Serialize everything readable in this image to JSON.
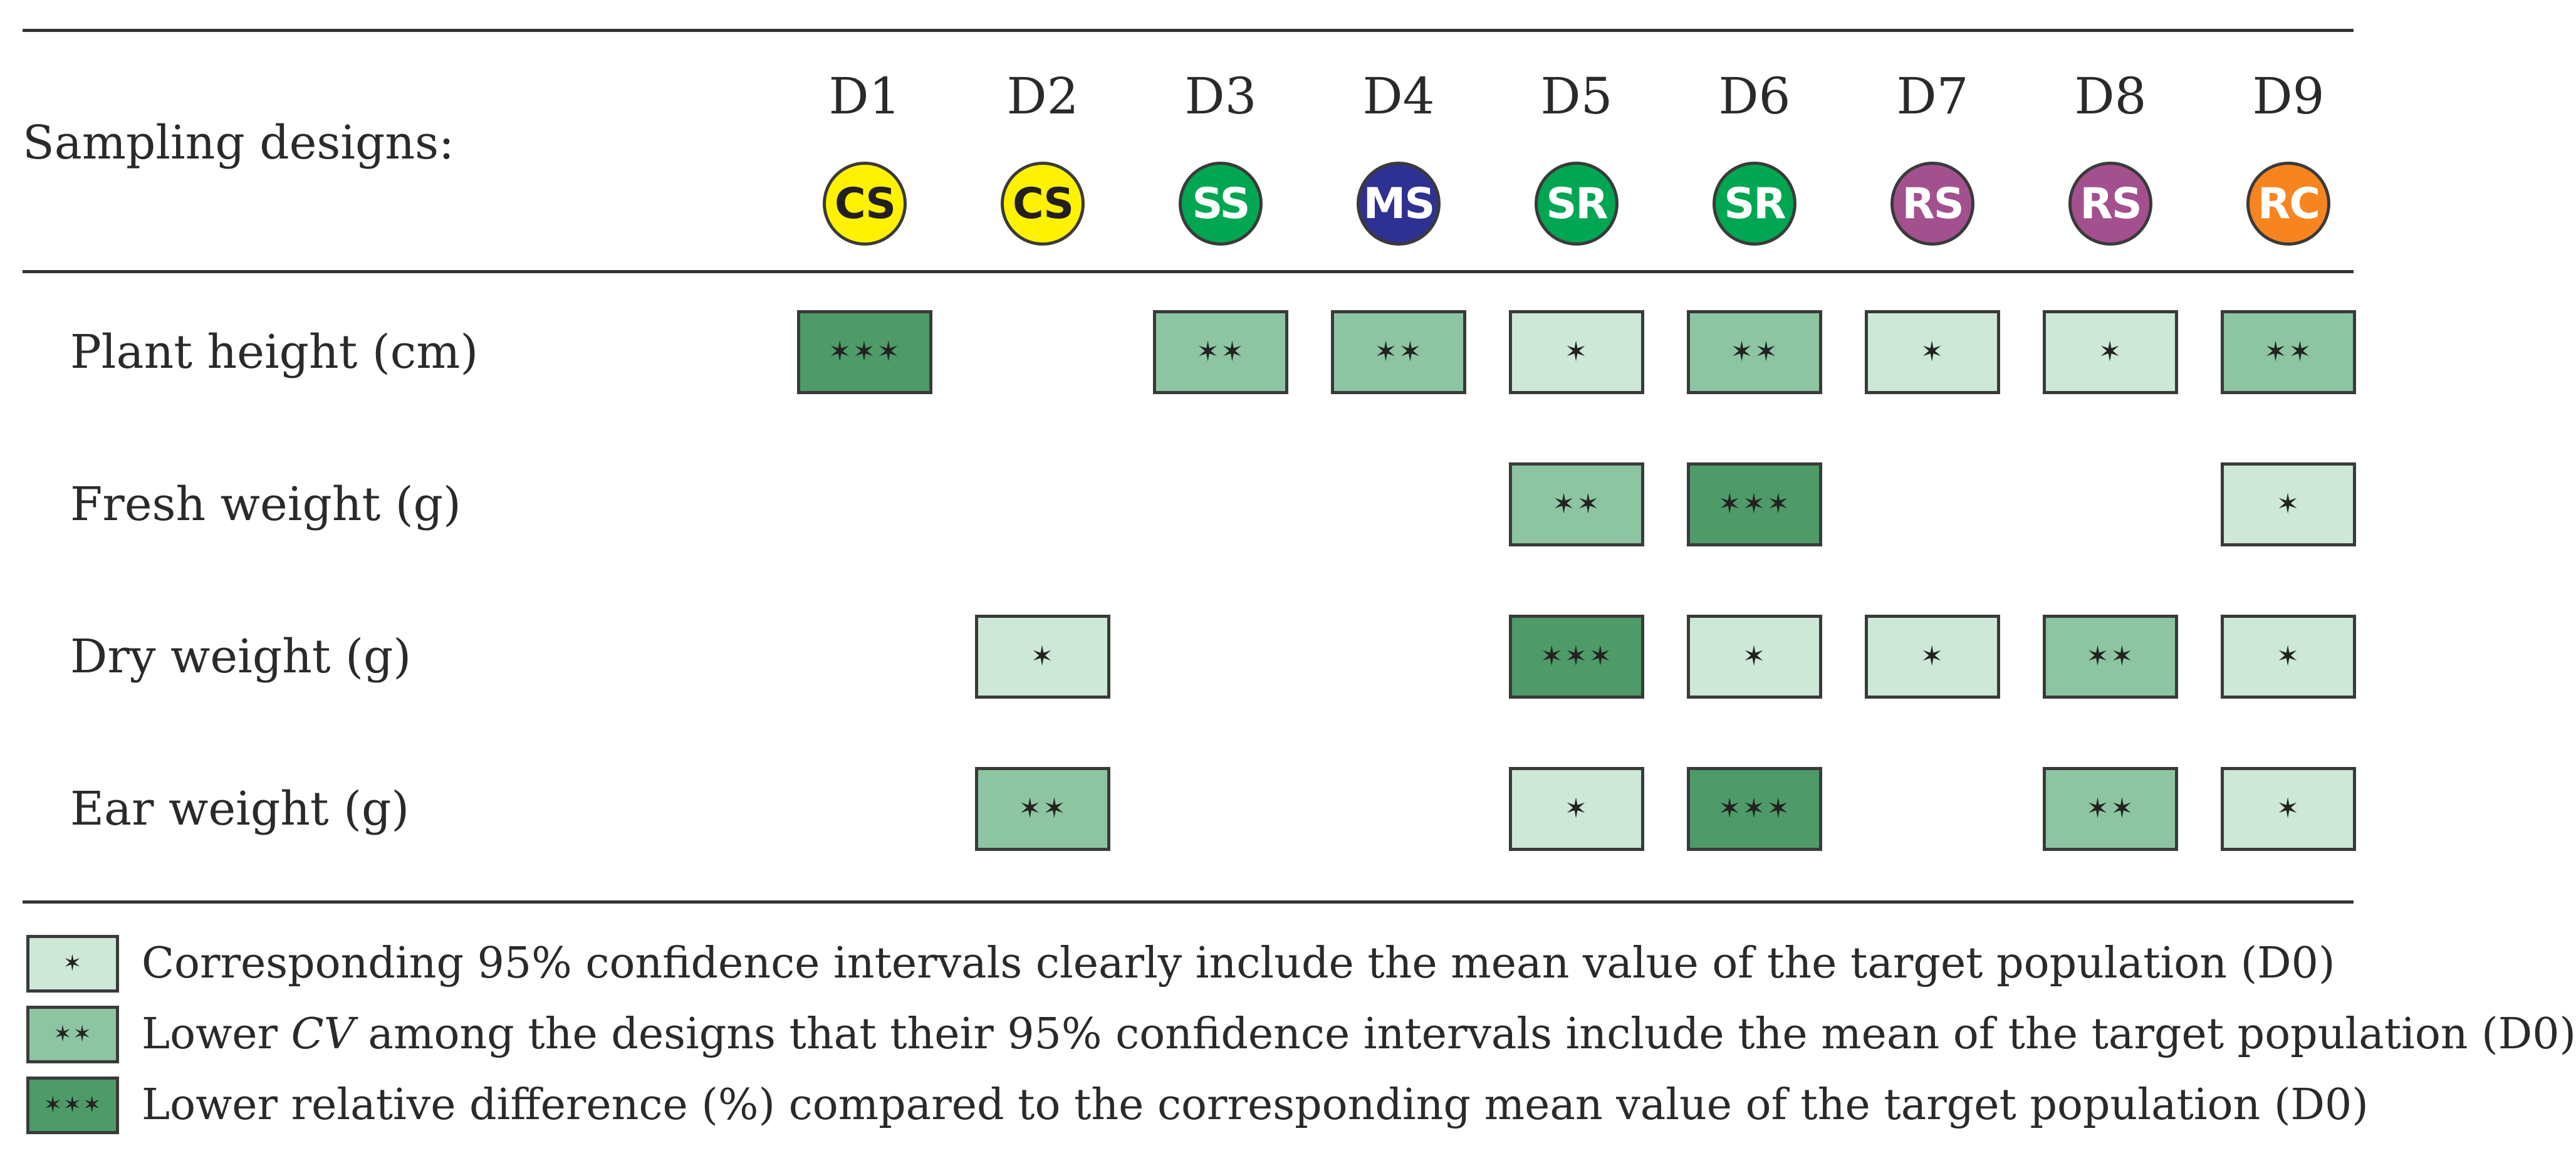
{
  "header": {
    "sampling_label": "Sampling designs:",
    "designs": [
      {
        "id": "D1",
        "code": "CS",
        "bg": "#FFF200",
        "fg": "#231F20"
      },
      {
        "id": "D2",
        "code": "CS",
        "bg": "#FFF200",
        "fg": "#231F20"
      },
      {
        "id": "D3",
        "code": "SS",
        "bg": "#00A651",
        "fg": "#FFFFFF"
      },
      {
        "id": "D4",
        "code": "MS",
        "bg": "#2E3192",
        "fg": "#FFFFFF"
      },
      {
        "id": "D5",
        "code": "SR",
        "bg": "#00A651",
        "fg": "#FFFFFF"
      },
      {
        "id": "D6",
        "code": "SR",
        "bg": "#00A651",
        "fg": "#FFFFFF"
      },
      {
        "id": "D7",
        "code": "RS",
        "bg": "#A3508F",
        "fg": "#FFFFFF"
      },
      {
        "id": "D8",
        "code": "RS",
        "bg": "#A3508F",
        "fg": "#FFFFFF"
      },
      {
        "id": "D9",
        "code": "RC",
        "bg": "#F7841F",
        "fg": "#FFFFFF"
      }
    ]
  },
  "rows": [
    {
      "label": "Plant height (cm)",
      "levels": [
        3,
        0,
        2,
        2,
        1,
        2,
        1,
        1,
        2
      ]
    },
    {
      "label": "Fresh weight (g)",
      "levels": [
        0,
        0,
        0,
        0,
        2,
        3,
        0,
        0,
        1
      ]
    },
    {
      "label": "Dry weight (g)",
      "levels": [
        0,
        1,
        0,
        0,
        3,
        1,
        1,
        2,
        1
      ]
    },
    {
      "label": "Ear weight (g)",
      "levels": [
        0,
        2,
        0,
        0,
        1,
        3,
        0,
        2,
        1
      ]
    }
  ],
  "level_colors": {
    "1": "#CDE8D6",
    "2": "#8DC5A2",
    "3": "#4E9A68"
  },
  "star_glyph": "✶",
  "legend": [
    {
      "level": 1,
      "text_before": "Corresponding 95% confidence intervals clearly include the mean value of the target population (D0)",
      "italic": "",
      "text_after": ""
    },
    {
      "level": 2,
      "text_before": "Lower ",
      "italic": "CV",
      "text_after": " among the designs that their 95% confidence intervals include the mean of the target population (D0)"
    },
    {
      "level": 3,
      "text_before": "Lower relative difference (%) compared to the corresponding mean value of the target population (D0)",
      "italic": "",
      "text_after": ""
    }
  ]
}
